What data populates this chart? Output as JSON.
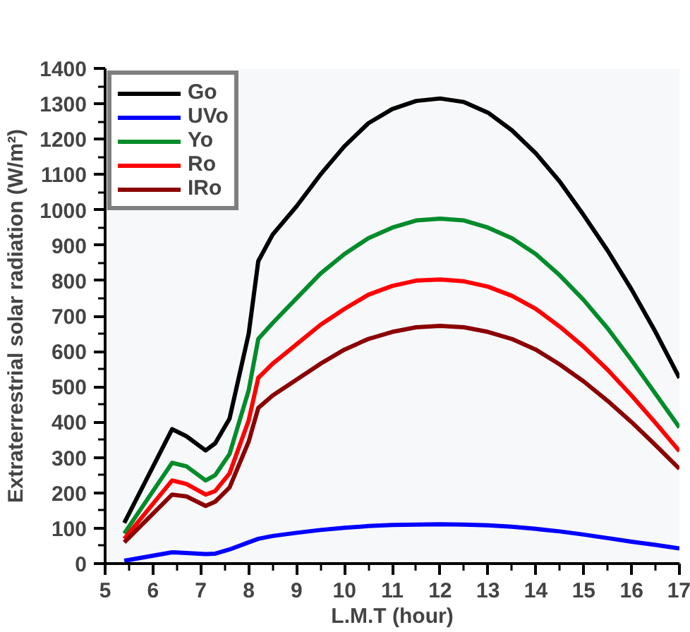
{
  "chart_data": {
    "type": "line",
    "xlabel": "L.M.T (hour)",
    "ylabel": "Extraterrestrial solar radiation (W/m²)",
    "x": [
      5.4,
      6.4,
      6.7,
      7.1,
      7.3,
      7.6,
      8.0,
      8.2,
      8.5,
      9,
      9.5,
      10,
      10.5,
      11,
      11.5,
      12,
      12.5,
      13,
      13.5,
      14,
      14.5,
      15,
      15.5,
      16,
      16.5,
      17
    ],
    "series": [
      {
        "name": "Go",
        "color": "#000000",
        "values": [
          115,
          380,
          360,
          320,
          340,
          410,
          650,
          855,
          930,
          1010,
          1100,
          1180,
          1245,
          1285,
          1308,
          1315,
          1305,
          1275,
          1225,
          1160,
          1080,
          985,
          885,
          775,
          655,
          525
        ]
      },
      {
        "name": "UVo",
        "color": "#0000ff",
        "values": [
          8,
          32,
          30,
          27,
          28,
          40,
          60,
          70,
          78,
          87,
          95,
          101,
          106,
          109,
          110,
          111,
          110,
          108,
          104,
          98,
          91,
          82,
          72,
          62,
          53,
          43
        ]
      },
      {
        "name": "Yo",
        "color": "#008c2a",
        "values": [
          85,
          285,
          275,
          235,
          250,
          310,
          490,
          635,
          680,
          750,
          820,
          875,
          920,
          950,
          970,
          975,
          970,
          950,
          920,
          875,
          815,
          745,
          665,
          575,
          480,
          385
        ]
      },
      {
        "name": "Ro",
        "color": "#ff0000",
        "values": [
          70,
          235,
          225,
          195,
          205,
          255,
          405,
          525,
          565,
          620,
          675,
          720,
          760,
          785,
          800,
          803,
          798,
          783,
          757,
          720,
          670,
          613,
          548,
          475,
          398,
          318
        ]
      },
      {
        "name": "IRo",
        "color": "#8b0000",
        "values": [
          60,
          195,
          190,
          163,
          175,
          215,
          345,
          440,
          475,
          520,
          565,
          605,
          635,
          655,
          668,
          672,
          668,
          655,
          635,
          605,
          563,
          515,
          460,
          400,
          335,
          268
        ]
      }
    ],
    "xlim": [
      5,
      17
    ],
    "xticks": [
      5,
      6,
      7,
      8,
      9,
      10,
      11,
      12,
      13,
      14,
      15,
      16,
      17
    ],
    "ylim": [
      0,
      1400
    ],
    "yticks": [
      0,
      100,
      200,
      300,
      400,
      500,
      600,
      700,
      800,
      900,
      1000,
      1100,
      1200,
      1300,
      1400
    ],
    "grid": false,
    "legend": "top left",
    "marker": "none",
    "line_style": "solid"
  }
}
